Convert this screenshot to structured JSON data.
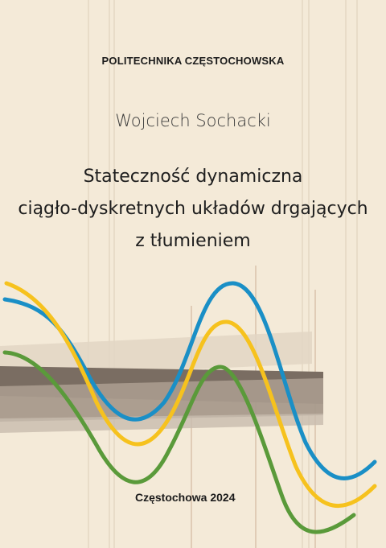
{
  "cover": {
    "institution": "POLITECHNIKA CZĘSTOCHOWSKA",
    "author": "Wojciech Sochacki",
    "title_lines": [
      "Stateczność dynamiczna",
      "ciągło-dyskretnych układów drgających",
      "z tłumieniem"
    ],
    "place_year": "Częstochowa 2024"
  },
  "colors": {
    "background": "#f4ead8",
    "wave_blue": "#1a8fc6",
    "wave_yellow": "#f6c21e",
    "wave_green": "#5a9a3a",
    "beam_dark": "#6e6256",
    "beam_mid": "#a8998b",
    "beam_light": "#d6c9b8"
  },
  "decor": {
    "waves": [
      "wave-blue",
      "wave-yellow",
      "wave-green"
    ],
    "beams": [
      "beam-top-light",
      "beam-dark",
      "beam-mid"
    ]
  }
}
